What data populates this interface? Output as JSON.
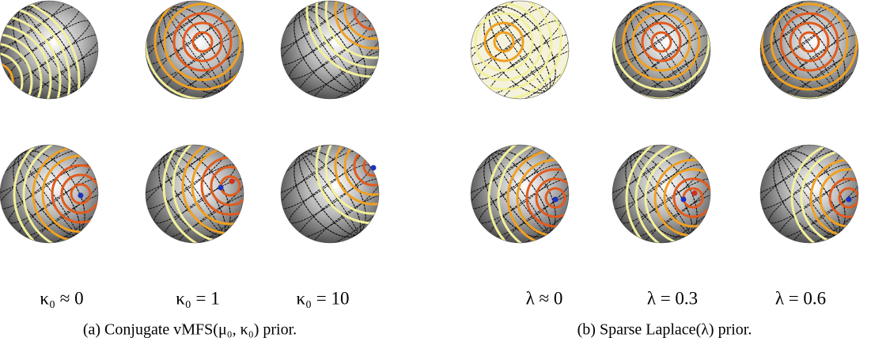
{
  "panels": [
    {
      "labels": [
        "κ₀ ≈ 0",
        "κ₀ = 1",
        "κ₀ = 10"
      ],
      "caption": "(a) Conjugate vMFS(μ₀, κ₀) prior."
    },
    {
      "labels": [
        "λ ≈ 0",
        "λ = 0.3",
        "λ = 0.6"
      ],
      "caption": "(b) Sparse Laplace(λ) prior."
    }
  ]
}
